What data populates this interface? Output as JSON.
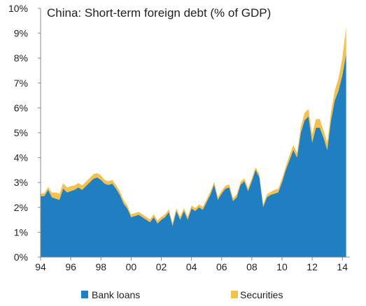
{
  "chart_data": {
    "type": "area",
    "stacked": true,
    "title": "China: Short-term foreign debt (% of GDP)",
    "xlabel": "",
    "ylabel": "",
    "xlim": [
      1994,
      2014.5
    ],
    "ylim": [
      0,
      10
    ],
    "grid": false,
    "legend_position": "bottom",
    "x_tick_labels": [
      "94",
      "96",
      "98",
      "00",
      "02",
      "04",
      "06",
      "08",
      "10",
      "12",
      "14"
    ],
    "x_tick_values": [
      1994,
      1996,
      1998,
      2000,
      2002,
      2004,
      2006,
      2008,
      2010,
      2012,
      2014
    ],
    "y_tick_labels": [
      "0%",
      "1%",
      "2%",
      "3%",
      "4%",
      "5%",
      "6%",
      "7%",
      "8%",
      "9%",
      "10%"
    ],
    "y_tick_values": [
      0,
      1,
      2,
      3,
      4,
      5,
      6,
      7,
      8,
      9,
      10
    ],
    "colors": {
      "bank_loans": "#1f7fc0",
      "securities": "#f2c14e",
      "axis": "#888888"
    },
    "x": [
      1994.0,
      1994.25,
      1994.5,
      1994.75,
      1995.0,
      1995.25,
      1995.5,
      1995.75,
      1996.0,
      1996.25,
      1996.5,
      1996.75,
      1997.0,
      1997.25,
      1997.5,
      1997.75,
      1998.0,
      1998.25,
      1998.5,
      1998.75,
      1999.0,
      1999.25,
      1999.5,
      1999.75,
      2000.0,
      2000.25,
      2000.5,
      2000.75,
      2001.0,
      2001.25,
      2001.5,
      2001.75,
      2002.0,
      2002.25,
      2002.5,
      2002.75,
      2003.0,
      2003.25,
      2003.5,
      2003.75,
      2004.0,
      2004.25,
      2004.5,
      2004.75,
      2005.0,
      2005.25,
      2005.5,
      2005.75,
      2006.0,
      2006.25,
      2006.5,
      2006.75,
      2007.0,
      2007.25,
      2007.5,
      2007.75,
      2008.0,
      2008.25,
      2008.5,
      2008.75,
      2009.0,
      2009.25,
      2009.5,
      2009.75,
      2010.0,
      2010.25,
      2010.5,
      2010.75,
      2011.0,
      2011.25,
      2011.5,
      2011.75,
      2012.0,
      2012.25,
      2012.5,
      2012.75,
      2013.0,
      2013.25,
      2013.5,
      2013.75,
      2014.0,
      2014.25
    ],
    "series": [
      {
        "name": "Bank loans",
        "values": [
          2.45,
          2.45,
          2.7,
          2.4,
          2.35,
          2.3,
          2.75,
          2.6,
          2.65,
          2.7,
          2.8,
          2.7,
          2.85,
          3.0,
          3.15,
          3.2,
          3.1,
          2.95,
          2.9,
          2.95,
          2.75,
          2.5,
          2.15,
          1.95,
          1.6,
          1.65,
          1.7,
          1.6,
          1.5,
          1.4,
          1.6,
          1.35,
          1.5,
          1.6,
          1.8,
          1.25,
          1.85,
          1.5,
          1.85,
          1.5,
          1.95,
          1.85,
          2.0,
          1.9,
          2.2,
          2.5,
          2.9,
          2.3,
          2.55,
          2.75,
          2.8,
          2.25,
          2.4,
          2.9,
          3.05,
          2.65,
          3.05,
          3.5,
          3.2,
          2.0,
          2.4,
          2.5,
          2.55,
          2.6,
          3.0,
          3.5,
          3.9,
          4.3,
          4.0,
          5.0,
          5.5,
          5.65,
          4.6,
          5.2,
          5.2,
          4.8,
          4.3,
          5.5,
          6.3,
          6.7,
          7.3,
          8.15
        ]
      },
      {
        "name": "Securities",
        "values": [
          0.1,
          0.12,
          0.12,
          0.2,
          0.25,
          0.25,
          0.22,
          0.2,
          0.2,
          0.18,
          0.18,
          0.18,
          0.18,
          0.18,
          0.18,
          0.18,
          0.18,
          0.15,
          0.15,
          0.15,
          0.15,
          0.15,
          0.15,
          0.12,
          0.12,
          0.12,
          0.12,
          0.12,
          0.12,
          0.12,
          0.12,
          0.12,
          0.12,
          0.12,
          0.12,
          0.12,
          0.12,
          0.12,
          0.12,
          0.12,
          0.12,
          0.12,
          0.12,
          0.12,
          0.12,
          0.12,
          0.12,
          0.12,
          0.12,
          0.12,
          0.12,
          0.12,
          0.12,
          0.12,
          0.12,
          0.12,
          0.12,
          0.12,
          0.12,
          0.12,
          0.12,
          0.12,
          0.15,
          0.15,
          0.15,
          0.15,
          0.2,
          0.2,
          0.2,
          0.25,
          0.3,
          0.3,
          0.35,
          0.35,
          0.35,
          0.3,
          0.3,
          0.35,
          0.4,
          0.5,
          0.7,
          1.1
        ]
      }
    ]
  }
}
